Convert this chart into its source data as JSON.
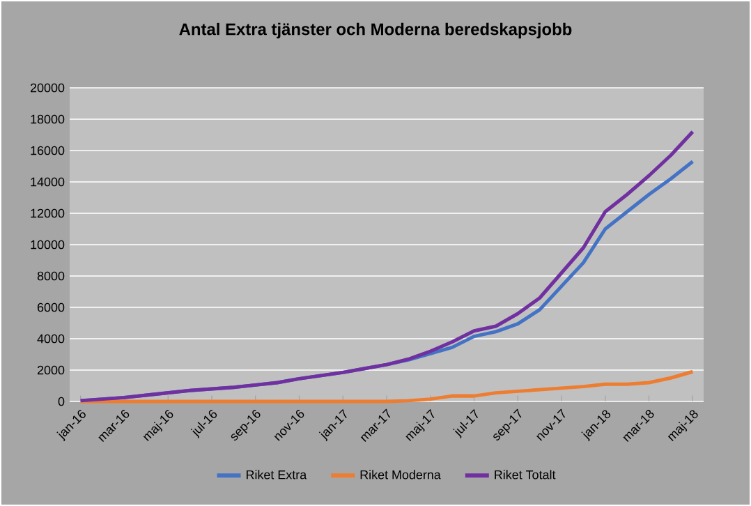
{
  "chart_data": {
    "type": "line",
    "title": "Antal Extra tjänster och Moderna beredskapsjobb",
    "categories": [
      "jan-16",
      null,
      "mar-16",
      null,
      "maj-16",
      null,
      "jul-16",
      null,
      "sep-16",
      null,
      "nov-16",
      null,
      "jan-17",
      null,
      "mar-17",
      null,
      "maj-17",
      null,
      "jul-17",
      null,
      "sep-17",
      null,
      "nov-17",
      null,
      "jan-18",
      null,
      "mar-18",
      null,
      "maj-18"
    ],
    "series": [
      {
        "name": "Riket Extra",
        "color": "#4472c4",
        "values": [
          50,
          150,
          250,
          400,
          550,
          700,
          800,
          900,
          1050,
          1200,
          1450,
          1650,
          1850,
          2100,
          2350,
          2650,
          3050,
          3450,
          4150,
          4450,
          4950,
          5850,
          7350,
          8850,
          11000,
          12100,
          13200,
          14200,
          15300
        ]
      },
      {
        "name": "Riket Moderna",
        "color": "#ed7d31",
        "values": [
          0,
          0,
          0,
          0,
          0,
          0,
          0,
          0,
          0,
          0,
          0,
          0,
          0,
          0,
          0,
          50,
          150,
          350,
          350,
          550,
          650,
          750,
          850,
          950,
          1100,
          1100,
          1200,
          1500,
          1900
        ]
      },
      {
        "name": "Riket Totalt",
        "color": "#7030a0",
        "values": [
          50,
          150,
          250,
          400,
          550,
          700,
          800,
          900,
          1050,
          1200,
          1450,
          1650,
          1850,
          2100,
          2350,
          2700,
          3200,
          3800,
          4500,
          4800,
          5600,
          6600,
          8200,
          9800,
          12100,
          13200,
          14400,
          15700,
          17200
        ]
      }
    ],
    "ylim": [
      0,
      20000
    ],
    "yticks": [
      0,
      2000,
      4000,
      6000,
      8000,
      10000,
      12000,
      14000,
      16000,
      18000,
      20000
    ],
    "grid": "y",
    "legend": "bottom",
    "marker": "none",
    "line_style": "solid"
  }
}
